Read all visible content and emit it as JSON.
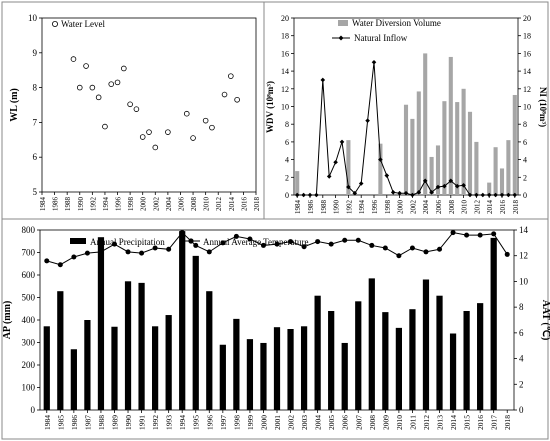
{
  "chart_data": [
    {
      "type": "scatter",
      "ylabel": "WL (m)",
      "xlim": [
        1984,
        2018
      ],
      "ylim": [
        5,
        10
      ],
      "x_ticks": [
        1984,
        1986,
        1988,
        1990,
        1992,
        1994,
        1996,
        1998,
        2000,
        2002,
        2004,
        2006,
        2008,
        2010,
        2012,
        2014,
        2016,
        2018
      ],
      "y_ticks": [
        5,
        6,
        7,
        8,
        9,
        10
      ],
      "grid": false,
      "legend_position": "top-left",
      "series": [
        {
          "name": "Water Level",
          "x": [
            1989,
            1990,
            1991,
            1992,
            1993,
            1994,
            1995,
            1996,
            1997,
            1998,
            1999,
            2000,
            2001,
            2002,
            2004,
            2007,
            2008,
            2010,
            2011,
            2013,
            2014,
            2015
          ],
          "y": [
            8.82,
            8.0,
            8.62,
            8.0,
            7.72,
            6.88,
            8.1,
            8.15,
            8.55,
            7.52,
            7.38,
            6.58,
            6.72,
            6.28,
            6.72,
            7.25,
            6.55,
            7.05,
            6.85,
            7.8,
            8.33,
            7.65
          ]
        }
      ]
    },
    {
      "type": "bar",
      "ylabel": "WDV (10⁸m³)",
      "y2label": "NI (10⁸m³)",
      "x": [
        1984,
        1985,
        1986,
        1987,
        1988,
        1989,
        1990,
        1991,
        1992,
        1993,
        1994,
        1995,
        1996,
        1997,
        1998,
        1999,
        2000,
        2001,
        2002,
        2003,
        2004,
        2005,
        2006,
        2007,
        2008,
        2009,
        2010,
        2011,
        2012,
        2013,
        2014,
        2015,
        2016,
        2017,
        2018
      ],
      "ylim": [
        0,
        20
      ],
      "y2lim": [
        0,
        20
      ],
      "y_ticks": [
        0,
        2,
        4,
        6,
        8,
        10,
        12,
        14,
        16,
        18,
        20
      ],
      "grid": false,
      "legend_position": "top",
      "series": [
        {
          "name": "Water Diversion Volume",
          "kind": "bar",
          "axis": "left",
          "values": [
            2.7,
            0,
            0,
            0,
            0,
            0,
            0,
            0,
            6.2,
            0,
            0,
            0,
            0,
            5.8,
            0,
            0,
            0,
            10.2,
            8.6,
            11.7,
            16.0,
            4.3,
            5.6,
            10.6,
            15.6,
            10.5,
            12.0,
            9.4,
            6.0,
            0,
            1.4,
            5.4,
            3.0,
            6.2,
            11.3
          ]
        },
        {
          "name": "Natural Inflow",
          "kind": "line",
          "axis": "right",
          "values": [
            0,
            0,
            0,
            0,
            13.0,
            2.1,
            3.7,
            6.0,
            0.9,
            0.2,
            1.3,
            8.4,
            15.0,
            4.0,
            2.2,
            0.3,
            0.2,
            0.2,
            0,
            0.3,
            1.6,
            0.3,
            0.9,
            1.0,
            1.6,
            1.0,
            1.1,
            0,
            0,
            0,
            0,
            0,
            0,
            0,
            0
          ]
        }
      ]
    },
    {
      "type": "bar",
      "ylabel": "AP (mm)",
      "y2label": "AAT (℃)",
      "categories": [
        "1984",
        "1985",
        "1986",
        "1987",
        "1988",
        "1989",
        "1990",
        "1991",
        "1992",
        "1993",
        "1994",
        "1995",
        "1996",
        "1997",
        "1998",
        "1999",
        "2000",
        "2001",
        "2002",
        "2003",
        "2004",
        "2005",
        "2006",
        "2007",
        "2008",
        "2009",
        "2010",
        "2011",
        "2012",
        "2013",
        "2014",
        "2015",
        "2016",
        "2017",
        "2018"
      ],
      "ylim": [
        0,
        800
      ],
      "y_ticks": [
        0,
        100,
        200,
        300,
        400,
        500,
        600,
        700,
        800
      ],
      "y2lim": [
        0,
        14
      ],
      "y2_ticks": [
        0,
        2,
        4,
        6,
        8,
        10,
        12,
        14
      ],
      "grid": false,
      "legend_position": "top",
      "series": [
        {
          "name": "Annual Precipitation",
          "kind": "bar",
          "axis": "left",
          "values": [
            372,
            528,
            270,
            400,
            768,
            370,
            572,
            565,
            372,
            422,
            795,
            685,
            528,
            290,
            405,
            315,
            298,
            368,
            360,
            372,
            508,
            440,
            298,
            483,
            585,
            435,
            365,
            448,
            580,
            508,
            340,
            440,
            475,
            765,
            0
          ]
        },
        {
          "name": "Annual Average Temperature",
          "kind": "line",
          "axis": "right",
          "values": [
            11.6,
            11.3,
            11.9,
            12.2,
            12.3,
            12.9,
            12.3,
            12.2,
            12.6,
            12.5,
            13.8,
            12.8,
            12.3,
            13.0,
            13.5,
            13.3,
            12.8,
            12.9,
            13.1,
            12.7,
            13.1,
            12.9,
            13.2,
            13.2,
            12.8,
            12.6,
            12.0,
            12.6,
            12.3,
            12.5,
            13.8,
            13.6,
            13.6,
            13.7,
            12.1
          ]
        }
      ]
    }
  ]
}
